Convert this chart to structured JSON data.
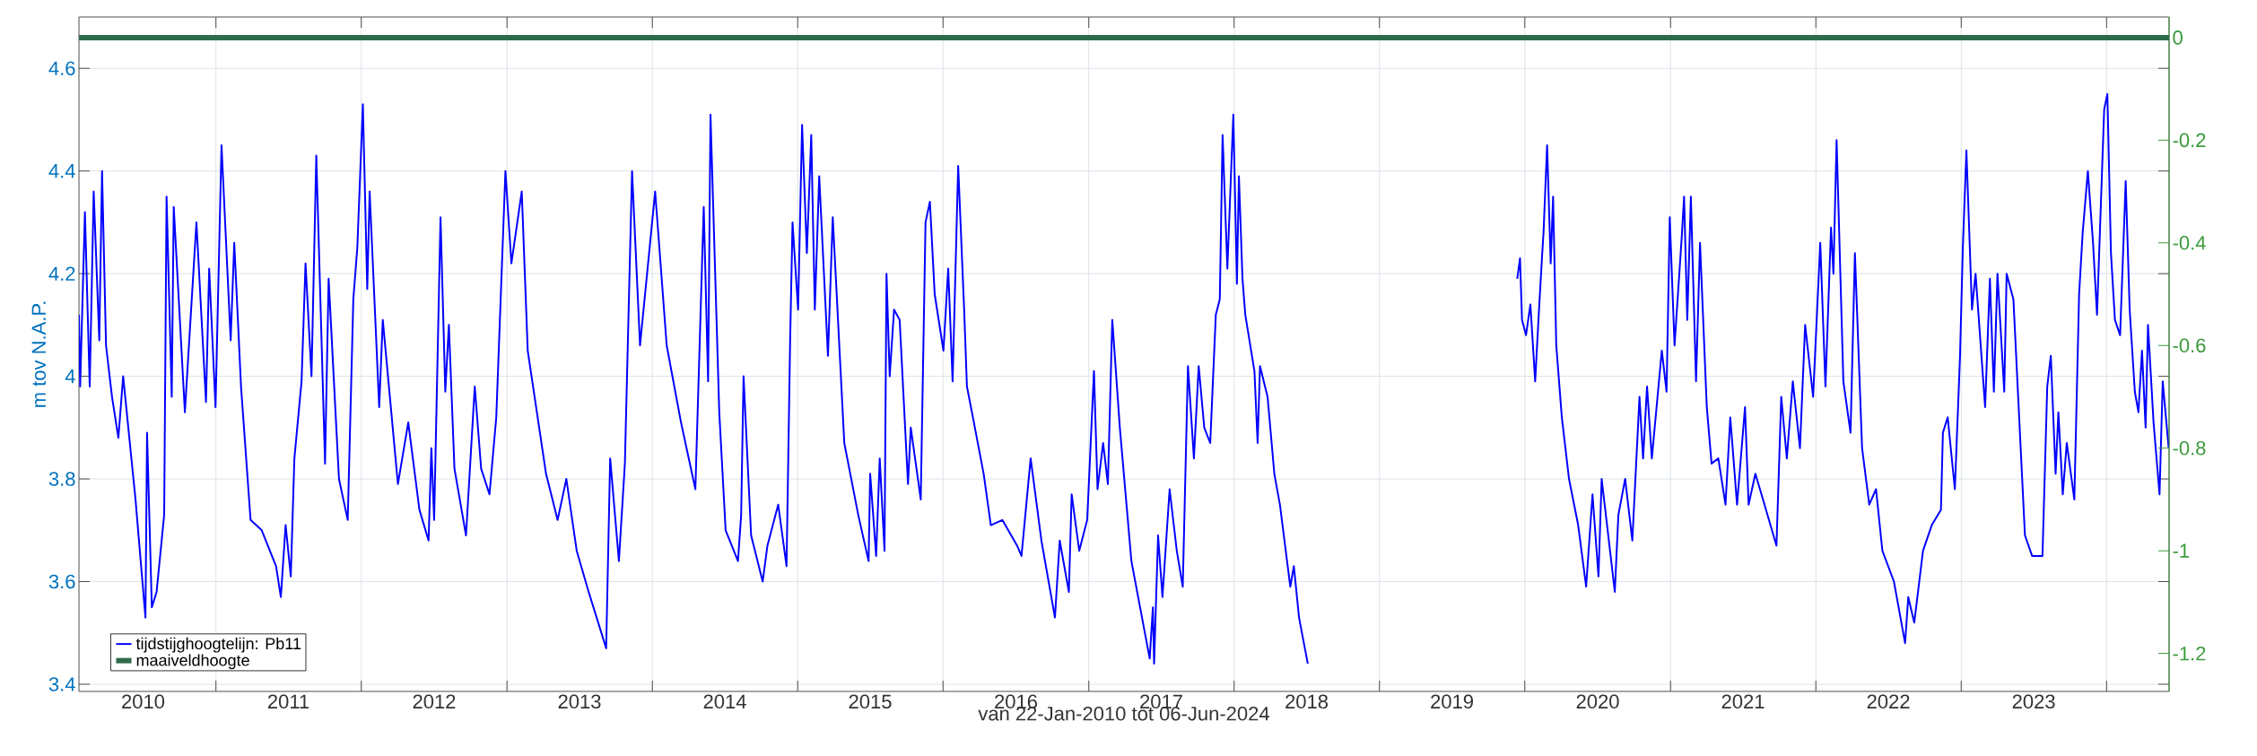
{
  "chart_data": {
    "type": "line",
    "xlabel": "van 22-Jan-2010 tot 06-Jun-2024",
    "ylabel": "m tov N.A.P.",
    "xlim": [
      "2010-01-22",
      "2024-06-06"
    ],
    "ylim": [
      3.386,
      4.7
    ],
    "y2lim": [
      -1.274,
      0.04
    ],
    "xticks": [
      {
        "value": "2011-01-01",
        "label": null
      },
      {
        "value": "2012-01-01",
        "label": null
      },
      {
        "value": "2013-01-01",
        "label": null
      },
      {
        "value": "2014-01-01",
        "label": null
      },
      {
        "value": "2015-01-01",
        "label": null
      },
      {
        "value": "2016-01-01",
        "label": null
      },
      {
        "value": "2017-01-01",
        "label": null
      },
      {
        "value": "2018-01-01",
        "label": null
      },
      {
        "value": "2019-01-01",
        "label": null
      },
      {
        "value": "2020-01-01",
        "label": null
      },
      {
        "value": "2021-01-01",
        "label": null
      },
      {
        "value": "2022-01-01",
        "label": null
      },
      {
        "value": "2023-01-01",
        "label": null
      },
      {
        "value": "2024-01-01",
        "label": null
      },
      {
        "value": "2010-07-02",
        "label": "2010"
      },
      {
        "value": "2011-07-02",
        "label": "2011"
      },
      {
        "value": "2012-07-02",
        "label": "2012"
      },
      {
        "value": "2013-07-02",
        "label": "2013"
      },
      {
        "value": "2014-07-02",
        "label": "2014"
      },
      {
        "value": "2015-07-02",
        "label": "2015"
      },
      {
        "value": "2016-07-02",
        "label": "2016"
      },
      {
        "value": "2017-07-02",
        "label": "2017"
      },
      {
        "value": "2018-07-02",
        "label": "2018"
      },
      {
        "value": "2019-07-02",
        "label": "2019"
      },
      {
        "value": "2020-07-02",
        "label": "2020"
      },
      {
        "value": "2021-07-02",
        "label": "2021"
      },
      {
        "value": "2022-07-02",
        "label": "2022"
      },
      {
        "value": "2023-07-02",
        "label": "2023"
      }
    ],
    "yticks": [
      3.4,
      3.6,
      3.8,
      4,
      4.2,
      4.4,
      4.6
    ],
    "y2ticks": [
      -1.2,
      -1,
      -0.8,
      -0.6,
      -0.4,
      -0.2,
      0
    ],
    "grid": true,
    "legend": "bottom left",
    "series": [
      {
        "name": "tijdstijghoogtelijn: Pb11",
        "color": "#0000ff",
        "x": [
          "2010-01-22",
          "2010-01-25",
          "2010-02-06",
          "2010-02-18",
          "2010-02-28",
          "2010-03-14",
          "2010-03-21",
          "2010-03-31",
          "2010-04-15",
          "2010-05-01",
          "2010-05-13",
          "2010-06-13",
          "2010-07-08",
          "2010-07-12",
          "2010-07-24",
          "2010-08-05",
          "2010-08-24",
          "2010-08-30",
          "2010-09-12",
          "2010-09-17",
          "2010-10-15",
          "2010-11-13",
          "2010-12-07",
          "2010-12-15",
          "2010-12-31",
          "2011-01-15",
          "2011-02-07",
          "2011-02-16",
          "2011-03-05",
          "2011-03-29",
          "2011-04-26",
          "2011-06-01",
          "2011-06-13",
          "2011-06-25",
          "2011-07-08",
          "2011-07-17",
          "2011-08-04",
          "2011-08-14",
          "2011-08-29",
          "2011-09-10",
          "2011-10-02",
          "2011-10-11",
          "2011-11-06",
          "2011-11-28",
          "2011-12-12",
          "2011-12-22",
          "2012-01-05",
          "2012-01-16",
          "2012-01-22",
          "2012-02-15",
          "2012-02-24",
          "2012-04-02",
          "2012-04-28",
          "2012-05-26",
          "2012-06-18",
          "2012-06-25",
          "2012-07-02",
          "2012-07-18",
          "2012-07-30",
          "2012-08-08",
          "2012-08-22",
          "2012-09-20",
          "2012-10-12",
          "2012-10-28",
          "2012-11-18",
          "2012-12-05",
          "2012-12-28",
          "2013-01-12",
          "2013-02-07",
          "2013-02-22",
          "2013-03-17",
          "2013-04-09",
          "2013-05-08",
          "2013-05-30",
          "2013-06-25",
          "2013-07-25",
          "2013-09-07",
          "2013-09-17",
          "2013-10-09",
          "2013-10-24",
          "2013-11-11",
          "2013-12-01",
          "2014-01-08",
          "2014-02-06",
          "2014-03-14",
          "2014-04-19",
          "2014-05-10",
          "2014-05-21",
          "2014-05-27",
          "2014-06-18",
          "2014-07-04",
          "2014-08-04",
          "2014-08-12",
          "2014-08-18",
          "2014-09-06",
          "2014-10-05",
          "2014-10-17",
          "2014-11-13",
          "2014-12-04",
          "2014-12-13",
          "2014-12-19",
          "2015-01-02",
          "2015-01-12",
          "2015-01-24",
          "2015-02-04",
          "2015-02-13",
          "2015-02-24",
          "2015-03-18",
          "2015-03-30",
          "2015-04-28",
          "2015-06-02",
          "2015-06-28",
          "2015-07-02",
          "2015-07-17",
          "2015-07-26",
          "2015-08-07",
          "2015-08-12",
          "2015-08-20",
          "2015-08-31",
          "2015-09-14",
          "2015-10-05",
          "2015-10-12",
          "2015-11-06",
          "2015-11-18",
          "2015-11-29",
          "2015-12-11",
          "2016-01-02",
          "2016-01-14",
          "2016-01-25",
          "2016-02-08",
          "2016-02-23",
          "2016-03-01",
          "2016-03-16",
          "2016-04-12",
          "2016-04-30",
          "2016-05-29",
          "2016-07-05",
          "2016-07-16",
          "2016-08-08",
          "2016-09-04",
          "2016-10-08",
          "2016-10-20",
          "2016-11-12",
          "2016-11-19",
          "2016-12-08",
          "2016-12-28",
          "2017-01-14",
          "2017-01-23",
          "2017-02-06",
          "2017-02-18",
          "2017-03-01",
          "2017-03-20",
          "2017-04-18",
          "2017-06-03",
          "2017-06-11",
          "2017-06-14",
          "2017-06-24",
          "2017-07-05",
          "2017-07-23",
          "2017-08-10",
          "2017-08-25",
          "2017-09-07",
          "2017-09-22",
          "2017-10-04",
          "2017-10-18",
          "2017-11-02",
          "2017-11-16",
          "2017-11-26",
          "2017-12-03",
          "2017-12-15",
          "2017-12-30",
          "2018-01-08",
          "2018-01-13",
          "2018-01-22",
          "2018-01-29",
          "2018-02-21",
          "2018-03-01",
          "2018-03-07",
          "2018-03-26",
          "2018-04-12",
          "2018-04-26",
          "2018-05-22",
          "2018-05-31",
          "2018-06-13",
          "2018-07-05",
          "2019-01-01",
          "2019-12-13",
          "2019-12-20",
          "2019-12-25",
          "2020-01-04",
          "2020-01-15",
          "2020-01-27",
          "2020-02-05",
          "2020-02-13",
          "2020-02-17",
          "2020-02-26",
          "2020-03-06",
          "2020-03-12",
          "2020-03-20",
          "2020-04-03",
          "2020-04-21",
          "2020-05-14",
          "2020-06-03",
          "2020-06-19",
          "2020-07-04",
          "2020-07-12",
          "2020-07-30",
          "2020-08-14",
          "2020-08-23",
          "2020-09-09",
          "2020-09-27",
          "2020-10-15",
          "2020-10-24",
          "2020-11-03",
          "2020-11-15",
          "2020-12-10",
          "2020-12-22",
          "2020-12-30",
          "2021-01-11",
          "2021-01-29",
          "2021-02-04",
          "2021-02-12",
          "2021-02-21",
          "2021-03-06",
          "2021-03-16",
          "2021-04-02",
          "2021-04-14",
          "2021-05-01",
          "2021-05-19",
          "2021-05-31",
          "2021-06-17",
          "2021-07-07",
          "2021-07-16",
          "2021-08-02",
          "2021-08-25",
          "2021-09-24",
          "2021-10-06",
          "2021-10-20",
          "2021-11-04",
          "2021-11-22",
          "2021-12-05",
          "2021-12-25",
          "2022-01-12",
          "2022-01-25",
          "2022-02-08",
          "2022-02-14",
          "2022-02-22",
          "2022-03-11",
          "2022-03-29",
          "2022-04-09",
          "2022-04-27",
          "2022-05-15",
          "2022-06-01",
          "2022-06-17",
          "2022-07-16",
          "2022-08-13",
          "2022-08-21",
          "2022-09-05",
          "2022-09-27",
          "2022-10-19",
          "2022-11-11",
          "2022-11-16",
          "2022-11-28",
          "2022-12-16",
          "2022-12-29",
          "2023-01-05",
          "2023-01-14",
          "2023-01-28",
          "2023-02-06",
          "2023-03-02",
          "2023-03-14",
          "2023-03-24",
          "2023-04-02",
          "2023-04-19",
          "2023-04-25",
          "2023-05-12",
          "2023-06-10",
          "2023-06-28",
          "2023-07-24",
          "2023-08-05",
          "2023-08-14",
          "2023-08-26",
          "2023-09-02",
          "2023-09-13",
          "2023-09-23",
          "2023-10-12",
          "2023-10-24",
          "2023-11-02",
          "2023-11-15",
          "2023-11-28",
          "2023-12-08",
          "2023-12-26",
          "2024-01-03",
          "2024-01-12",
          "2024-01-22",
          "2024-02-04",
          "2024-02-18",
          "2024-02-28",
          "2024-03-12",
          "2024-03-21",
          "2024-03-30",
          "2024-04-08",
          "2024-04-14",
          "2024-04-28",
          "2024-05-13",
          "2024-05-21",
          "2024-06-05"
        ],
        "values": [
          4.12,
          3.98,
          4.32,
          3.98,
          4.36,
          4.07,
          4.4,
          4.06,
          3.96,
          3.88,
          4.0,
          3.76,
          3.53,
          3.89,
          3.55,
          3.58,
          3.73,
          4.35,
          3.96,
          4.33,
          3.93,
          4.3,
          3.95,
          4.21,
          3.94,
          4.45,
          4.07,
          4.26,
          3.98,
          3.72,
          3.7,
          3.63,
          3.57,
          3.71,
          3.61,
          3.84,
          3.99,
          4.22,
          4.0,
          4.43,
          3.83,
          4.19,
          3.8,
          3.72,
          4.15,
          4.25,
          4.53,
          4.17,
          4.36,
          3.94,
          4.11,
          3.79,
          3.91,
          3.74,
          3.68,
          3.86,
          3.72,
          4.31,
          3.97,
          4.1,
          3.82,
          3.69,
          3.98,
          3.82,
          3.77,
          3.92,
          4.4,
          4.22,
          4.36,
          4.05,
          3.93,
          3.81,
          3.72,
          3.8,
          3.66,
          3.58,
          3.47,
          3.84,
          3.64,
          3.83,
          4.4,
          4.06,
          4.36,
          4.06,
          3.91,
          3.78,
          4.33,
          3.99,
          4.51,
          3.93,
          3.7,
          3.64,
          3.73,
          4.0,
          3.69,
          3.6,
          3.67,
          3.75,
          3.63,
          4.07,
          4.3,
          4.13,
          4.49,
          4.24,
          4.47,
          4.13,
          4.39,
          4.04,
          4.31,
          3.87,
          3.73,
          3.64,
          3.81,
          3.65,
          3.84,
          3.66,
          4.2,
          4.0,
          4.13,
          4.11,
          3.79,
          3.9,
          3.76,
          4.3,
          4.34,
          4.16,
          4.05,
          4.21,
          3.99,
          4.41,
          4.13,
          3.98,
          3.92,
          3.81,
          3.71,
          3.72,
          3.67,
          3.65,
          3.84,
          3.68,
          3.53,
          3.68,
          3.58,
          3.77,
          3.66,
          3.72,
          4.01,
          3.78,
          3.87,
          3.79,
          4.11,
          3.9,
          3.64,
          3.45,
          3.55,
          3.44,
          3.69,
          3.57,
          3.78,
          3.66,
          3.59,
          4.02,
          3.84,
          4.02,
          3.9,
          3.87,
          4.12,
          4.15,
          4.47,
          4.21,
          4.51,
          4.18,
          4.39,
          4.19,
          4.12,
          4.01,
          3.87,
          4.02,
          3.96,
          3.81,
          3.75,
          3.59,
          3.63,
          3.53,
          3.44,
          null,
          4.19,
          4.23,
          4.11,
          4.08,
          4.14,
          3.99,
          4.12,
          4.23,
          4.28,
          4.45,
          4.22,
          4.35,
          4.06,
          3.92,
          3.8,
          3.71,
          3.59,
          3.77,
          3.61,
          3.8,
          3.68,
          3.58,
          3.73,
          3.8,
          3.68,
          3.96,
          3.84,
          3.98,
          3.84,
          4.05,
          3.97,
          4.31,
          4.06,
          4.27,
          4.35,
          4.11,
          4.35,
          3.99,
          4.26,
          3.94,
          3.83,
          3.84,
          3.75,
          3.92,
          3.75,
          3.94,
          3.75,
          3.81,
          3.75,
          3.67,
          3.96,
          3.84,
          3.99,
          3.86,
          4.1,
          3.96,
          4.26,
          3.98,
          4.29,
          4.2,
          4.46,
          3.99,
          3.89,
          4.24,
          3.86,
          3.75,
          3.78,
          3.66,
          3.6,
          3.48,
          3.57,
          3.52,
          3.66,
          3.71,
          3.74,
          3.89,
          3.92,
          3.78,
          4.04,
          4.25,
          4.44,
          4.13,
          4.2,
          3.94,
          4.19,
          3.97,
          4.2,
          3.97,
          4.2,
          4.15,
          3.69,
          3.65,
          3.65,
          3.98,
          4.04,
          3.81,
          3.93,
          3.77,
          3.87,
          3.76,
          4.16,
          4.28,
          4.4,
          4.26,
          4.12,
          4.52,
          4.55,
          4.24,
          4.11,
          4.08,
          4.38,
          4.13,
          3.97,
          3.93,
          4.05,
          3.9,
          4.1,
          3.91,
          3.77,
          3.99,
          3.86
        ]
      },
      {
        "name": "maaiveldhoogte",
        "color": "#2e6b4a",
        "axis": "y2",
        "x": [
          "2010-01-22",
          "2024-06-06"
        ],
        "values": [
          0,
          0
        ]
      }
    ]
  }
}
